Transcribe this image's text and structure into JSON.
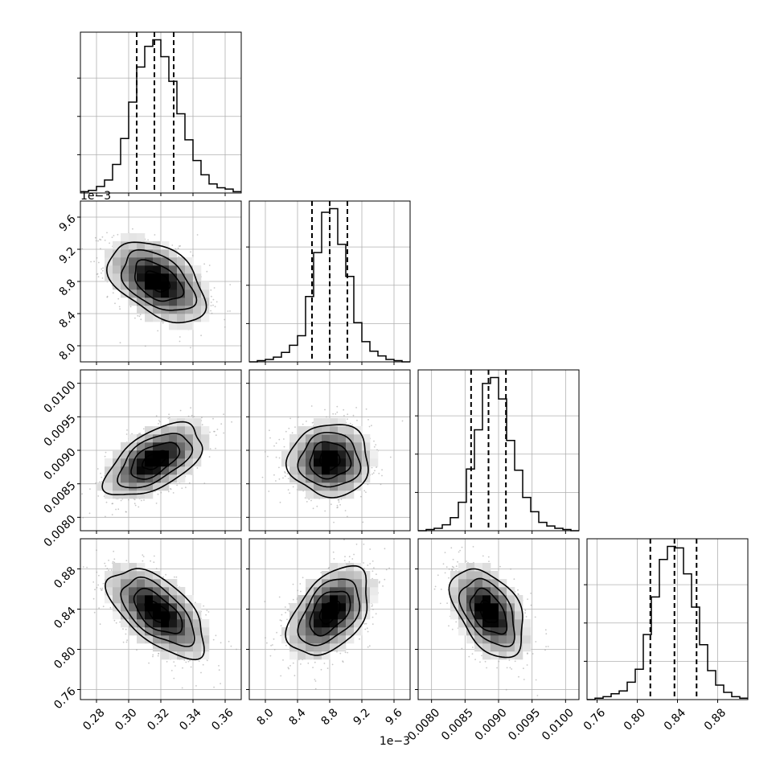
{
  "chart_data": {
    "type": "corner",
    "title": "",
    "parameters": [
      {
        "index": 0,
        "range": [
          0.27,
          0.37
        ],
        "ticks": [
          "0.28",
          "0.30",
          "0.32",
          "0.34",
          "0.36"
        ],
        "tick_values": [
          0.28,
          0.3,
          0.32,
          0.34,
          0.36
        ],
        "quantiles": [
          0.305,
          0.316,
          0.328
        ],
        "offset_label": ""
      },
      {
        "index": 1,
        "range": [
          7.8,
          9.8
        ],
        "ticks": [
          "8.0",
          "8.4",
          "8.8",
          "9.2",
          "9.6"
        ],
        "tick_values": [
          8.0,
          8.4,
          8.8,
          9.2,
          9.6
        ],
        "quantiles": [
          8.58,
          8.8,
          9.02
        ],
        "offset_label": "1e−3"
      },
      {
        "index": 2,
        "range": [
          0.0078,
          0.0102
        ],
        "ticks": [
          "0.0080",
          "0.0085",
          "0.0090",
          "0.0095",
          "0.0100"
        ],
        "tick_values": [
          0.008,
          0.0085,
          0.009,
          0.0095,
          0.01
        ],
        "quantiles": [
          0.00859,
          0.00885,
          0.00911
        ],
        "offset_label": ""
      },
      {
        "index": 3,
        "range": [
          0.75,
          0.91
        ],
        "ticks": [
          "0.76",
          "0.80",
          "0.84",
          "0.88"
        ],
        "tick_values": [
          0.76,
          0.8,
          0.84,
          0.88
        ],
        "quantiles": [
          0.813,
          0.837,
          0.859
        ],
        "offset_label": ""
      }
    ],
    "histograms": [
      {
        "param": 0,
        "bins": [
          0.27,
          0.37
        ],
        "counts": [
          1,
          2,
          5,
          10,
          22,
          42,
          70,
          97,
          113,
          118,
          105,
          86,
          61,
          41,
          25,
          14,
          7,
          4,
          3,
          1
        ]
      },
      {
        "param": 1,
        "bins": [
          7.8,
          9.8
        ],
        "counts": [
          0,
          1,
          2,
          4,
          8,
          14,
          22,
          55,
          92,
          126,
          129,
          99,
          72,
          33,
          17,
          9,
          5,
          2,
          1,
          0
        ]
      },
      {
        "param": 2,
        "bins": [
          0.0078,
          0.0102
        ],
        "counts": [
          0,
          1,
          2,
          5,
          11,
          24,
          52,
          85,
          124,
          129,
          111,
          76,
          51,
          28,
          16,
          7,
          4,
          2,
          1,
          0
        ]
      },
      {
        "param": 3,
        "bins": [
          0.75,
          0.91
        ],
        "counts": [
          0,
          1,
          2,
          4,
          6,
          12,
          21,
          45,
          71,
          97,
          106,
          105,
          87,
          64,
          38,
          20,
          10,
          5,
          2,
          1
        ]
      }
    ],
    "joint": [
      {
        "x": 0,
        "y": 1,
        "mean": [
          0.318,
          8.8
        ],
        "sd": [
          0.015,
          0.25
        ],
        "rho": -0.45
      },
      {
        "x": 0,
        "y": 2,
        "mean": [
          0.316,
          0.00885
        ],
        "sd": [
          0.015,
          0.00027
        ],
        "rho": 0.55
      },
      {
        "x": 1,
        "y": 2,
        "mean": [
          8.8,
          0.00885
        ],
        "sd": [
          0.25,
          0.00027
        ],
        "rho": 0.0
      },
      {
        "x": 0,
        "y": 3,
        "mean": [
          0.318,
          0.837
        ],
        "sd": [
          0.015,
          0.022
        ],
        "rho": -0.6
      },
      {
        "x": 1,
        "y": 3,
        "mean": [
          8.8,
          0.837
        ],
        "sd": [
          0.25,
          0.022
        ],
        "rho": 0.45
      },
      {
        "x": 2,
        "y": 3,
        "mean": [
          0.00885,
          0.837
        ],
        "sd": [
          0.00027,
          0.022
        ],
        "rho": -0.45
      }
    ],
    "contour_levels_sigma": [
      0.5,
      1.0,
      1.5,
      2.0
    ],
    "grid": true,
    "xlabel": "",
    "ylabel": ""
  }
}
